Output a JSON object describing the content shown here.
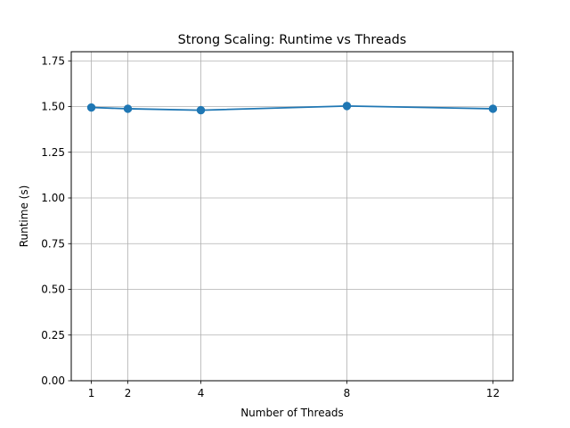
{
  "chart_data": {
    "type": "line",
    "title": "Strong Scaling: Runtime vs Threads",
    "xlabel": "Number of Threads",
    "ylabel": "Runtime (s)",
    "x": [
      1,
      2,
      4,
      8,
      12
    ],
    "x_ticks": [
      1,
      2,
      4,
      8,
      12
    ],
    "x_tick_labels": [
      "1",
      "2",
      "4",
      "8",
      "12"
    ],
    "xlim": [
      0.45,
      12.55
    ],
    "ylim": [
      0.0,
      1.8
    ],
    "y_ticks": [
      0.0,
      0.25,
      0.5,
      0.75,
      1.0,
      1.25,
      1.5,
      1.75
    ],
    "y_tick_labels": [
      "0.00",
      "0.25",
      "0.50",
      "0.75",
      "1.00",
      "1.25",
      "1.50",
      "1.75"
    ],
    "grid": true,
    "marker": "circle",
    "series": [
      {
        "values": [
          1.495,
          1.488,
          1.48,
          1.503,
          1.488
        ],
        "color": "#1f77b4"
      }
    ]
  }
}
